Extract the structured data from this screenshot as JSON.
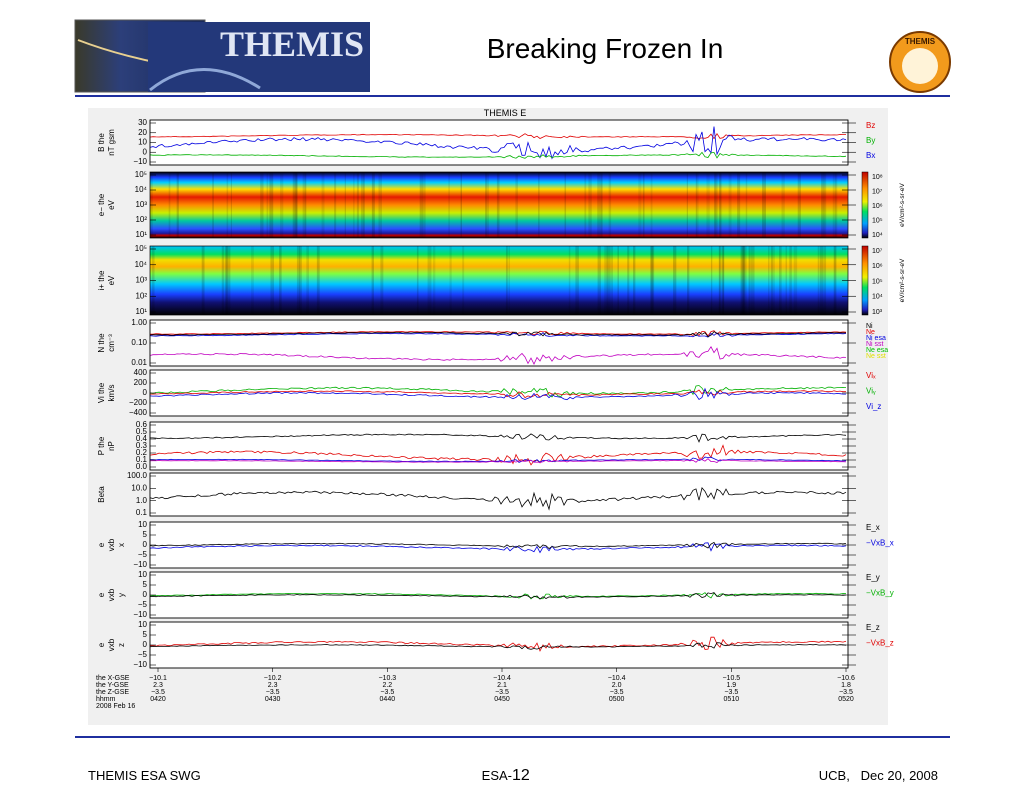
{
  "header": {
    "logo_text": "THEMIS",
    "title": "Breaking Frozen In",
    "badge_text": "THEMIS"
  },
  "figure": {
    "title": "THEMIS E",
    "panels": [
      {
        "label": [
          "B the",
          "nT gsm"
        ],
        "ticks": [
          "30",
          "20",
          "10",
          "0",
          "−10"
        ],
        "legend": [
          "Bz",
          "By",
          "Bx"
        ]
      },
      {
        "label": [
          "e− the",
          "eV"
        ],
        "ticks": [
          "10⁵",
          "10⁴",
          "10³",
          "10²",
          "10¹"
        ],
        "colorbar": [
          "10⁸",
          "10⁷",
          "10⁶",
          "10⁵",
          "10⁴"
        ],
        "unit": "eV/cm²-s-sr-eV"
      },
      {
        "label": [
          "i+ the",
          "eV"
        ],
        "ticks": [
          "10⁵",
          "10⁴",
          "10³",
          "10²",
          "10¹"
        ],
        "colorbar": [
          "10⁷",
          "10⁶",
          "10⁵",
          "10⁴",
          "10³"
        ],
        "unit": "eV/cm²-s-sr-eV"
      },
      {
        "label": [
          "N the",
          "cm⁻³"
        ],
        "ticks": [
          "1.00",
          "0.10",
          "0.01"
        ],
        "legend": [
          "Ni",
          "Ne",
          "Ni esa",
          "Ni sst",
          "Ne esa",
          "Ne sst"
        ]
      },
      {
        "label": [
          "Vi the",
          "km/s"
        ],
        "ticks": [
          "400",
          "200",
          "0",
          "−200",
          "−400"
        ],
        "legend": [
          "Viₓ",
          "Viᵧ",
          "Vi_z"
        ]
      },
      {
        "label": [
          "P the",
          "nP"
        ],
        "ticks": [
          "0.6",
          "0.5",
          "0.4",
          "0.3",
          "0.2",
          "0.1",
          "0.0"
        ]
      },
      {
        "label": [
          "Beta"
        ],
        "ticks": [
          "100.0",
          "10.0",
          "1.0",
          "0.1"
        ]
      },
      {
        "label": [
          "e",
          "vxb",
          "x"
        ],
        "ticks": [
          "10",
          "5",
          "0",
          "−5",
          "−10"
        ],
        "legend": [
          "E_x",
          "−VxB_x"
        ]
      },
      {
        "label": [
          "e",
          "vxb",
          "y"
        ],
        "ticks": [
          "10",
          "5",
          "0",
          "−5",
          "−10"
        ],
        "legend": [
          "E_y",
          "−VxB_y"
        ]
      },
      {
        "label": [
          "e",
          "vxb",
          "z"
        ],
        "ticks": [
          "10",
          "5",
          "0",
          "−5",
          "−10"
        ],
        "legend": [
          "E_z",
          "−VxB_z"
        ]
      }
    ],
    "xaxis": {
      "row_labels": [
        "the X-GSE",
        "the Y-GSE",
        "the Z-GSE",
        "hhmm",
        "2008 Feb 16"
      ],
      "columns": [
        [
          "−10.1",
          "2.3",
          "−3.5",
          "0420"
        ],
        [
          "−10.2",
          "2.3",
          "−3.5",
          "0430"
        ],
        [
          "−10.3",
          "2.2",
          "−3.5",
          "0440"
        ],
        [
          "−10.4",
          "2.1",
          "−3.5",
          "0450"
        ],
        [
          "−10.4",
          "2.0",
          "−3.5",
          "0500"
        ],
        [
          "−10.5",
          "1.9",
          "−3.5",
          "0510"
        ],
        [
          "−10.6",
          "1.8",
          "−3.5",
          "0520"
        ]
      ]
    }
  },
  "footer": {
    "left": "THEMIS ESA SWG",
    "center_prefix": "ESA-",
    "center_number": "12",
    "right": "UCB,   Dec 20, 2008"
  }
}
